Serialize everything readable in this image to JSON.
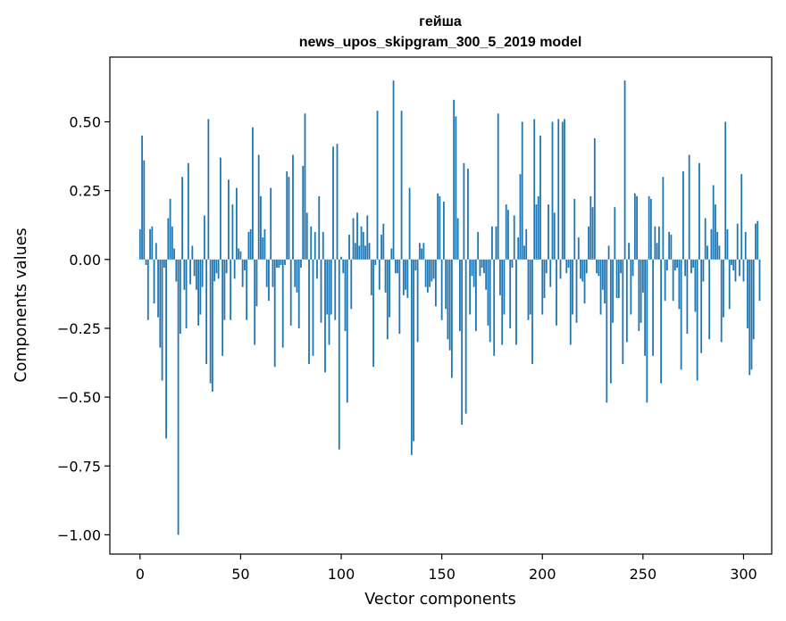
{
  "chart_data": {
    "type": "bar",
    "title_line1": "гейша",
    "title_line2": "news_upos_skipgram_300_5_2019 model",
    "xlabel": "Vector components",
    "ylabel": "Components values",
    "xlim": [
      -15,
      314
    ],
    "ylim": [
      -1.07,
      0.735
    ],
    "xticks": [
      0,
      50,
      100,
      150,
      200,
      250,
      300
    ],
    "yticks": [
      0.5,
      0.25,
      0.0,
      -0.25,
      -0.5,
      -0.75,
      -1.0
    ],
    "ytick_labels": [
      "0.50",
      "0.25",
      "0.00",
      "−0.25",
      "−0.50",
      "−0.75",
      "−1.00"
    ],
    "bar_color": "#1f77b4",
    "values": [
      0.11,
      0.45,
      0.36,
      -0.02,
      -0.22,
      0.11,
      0.12,
      -0.16,
      0.06,
      -0.21,
      -0.32,
      -0.44,
      -0.03,
      -0.65,
      0.15,
      0.22,
      0.12,
      0.04,
      -0.08,
      -1.0,
      -0.27,
      0.3,
      -0.11,
      -0.25,
      0.35,
      -0.09,
      0.05,
      -0.06,
      -0.11,
      -0.24,
      -0.2,
      -0.1,
      0.16,
      -0.38,
      0.51,
      -0.45,
      -0.48,
      -0.08,
      -0.05,
      -0.07,
      0.37,
      -0.35,
      -0.22,
      -0.05,
      0.29,
      -0.22,
      0.2,
      -0.07,
      0.26,
      0.04,
      0.03,
      -0.1,
      -0.04,
      -0.22,
      0.1,
      0.11,
      0.48,
      -0.31,
      -0.17,
      0.38,
      0.23,
      0.08,
      0.11,
      -0.1,
      -0.15,
      0.26,
      -0.1,
      -0.39,
      -0.03,
      -0.03,
      -0.02,
      -0.32,
      -0.02,
      0.32,
      0.3,
      -0.24,
      0.38,
      -0.1,
      -0.12,
      -0.25,
      -0.03,
      0.34,
      0.53,
      0.17,
      -0.38,
      0.12,
      -0.35,
      0.1,
      -0.07,
      0.23,
      -0.23,
      0.1,
      -0.41,
      -0.2,
      -0.31,
      -0.2,
      0.41,
      -0.22,
      0.42,
      -0.69,
      0.01,
      -0.05,
      -0.26,
      -0.52,
      0.09,
      -0.18,
      0.15,
      0.06,
      0.17,
      0.05,
      0.12,
      0.1,
      0.05,
      0.16,
      0.06,
      -0.13,
      -0.39,
      -0.02,
      0.54,
      -0.11,
      0.09,
      0.13,
      -0.12,
      -0.29,
      -0.21,
      0.04,
      0.65,
      -0.05,
      -0.05,
      -0.27,
      0.54,
      -0.13,
      -0.11,
      -0.14,
      0.26,
      -0.71,
      -0.66,
      -0.04,
      -0.3,
      0.06,
      0.04,
      0.06,
      -0.1,
      -0.12,
      -0.1,
      -0.08,
      -0.07,
      -0.17,
      0.24,
      0.23,
      -0.22,
      0.21,
      -0.18,
      -0.29,
      -0.33,
      -0.43,
      0.58,
      0.52,
      0.15,
      -0.26,
      -0.6,
      0.35,
      -0.56,
      0.33,
      -0.2,
      -0.06,
      -0.1,
      -0.26,
      0.1,
      -0.06,
      -0.03,
      -0.05,
      -0.11,
      -0.24,
      -0.3,
      0.12,
      -0.35,
      0.12,
      0.53,
      -0.13,
      -0.31,
      -0.2,
      0.2,
      0.18,
      -0.25,
      -0.03,
      0.16,
      -0.31,
      0.08,
      0.31,
      0.5,
      0.05,
      0.11,
      -0.22,
      -0.2,
      -0.38,
      0.51,
      0.2,
      0.23,
      0.45,
      -0.2,
      -0.14,
      -0.05,
      0.2,
      -0.1,
      0.5,
      0.17,
      -0.24,
      0.51,
      -0.07,
      0.5,
      0.51,
      -0.05,
      -0.03,
      -0.31,
      -0.2,
      0.22,
      -0.23,
      0.08,
      -0.07,
      -0.08,
      -0.16,
      -0.05,
      0.12,
      0.23,
      0.19,
      0.44,
      -0.05,
      -0.06,
      -0.2,
      -0.11,
      -0.16,
      -0.52,
      0.05,
      -0.45,
      -0.23,
      0.19,
      -0.14,
      -0.14,
      -0.05,
      -0.38,
      0.65,
      -0.3,
      0.06,
      -0.2,
      -0.06,
      0.24,
      0.23,
      -0.26,
      -0.23,
      -0.12,
      -0.35,
      -0.52,
      0.23,
      0.22,
      -0.35,
      0.12,
      0.06,
      0.12,
      -0.45,
      0.3,
      -0.15,
      -0.04,
      0.1,
      0.09,
      -0.15,
      -0.04,
      -0.03,
      -0.18,
      -0.4,
      0.32,
      -0.06,
      -0.27,
      0.38,
      -0.05,
      -0.03,
      -0.19,
      -0.44,
      0.35,
      -0.34,
      -0.08,
      0.15,
      0.05,
      -0.29,
      0.11,
      0.27,
      0.2,
      0.1,
      0.05,
      -0.3,
      -0.21,
      0.5,
      0.11,
      -0.18,
      -0.02,
      -0.04,
      -0.08,
      0.13,
      -0.06,
      0.31,
      -0.08,
      0.1,
      -0.25,
      -0.42,
      -0.4,
      -0.29,
      0.13,
      0.14,
      -0.15
    ]
  }
}
